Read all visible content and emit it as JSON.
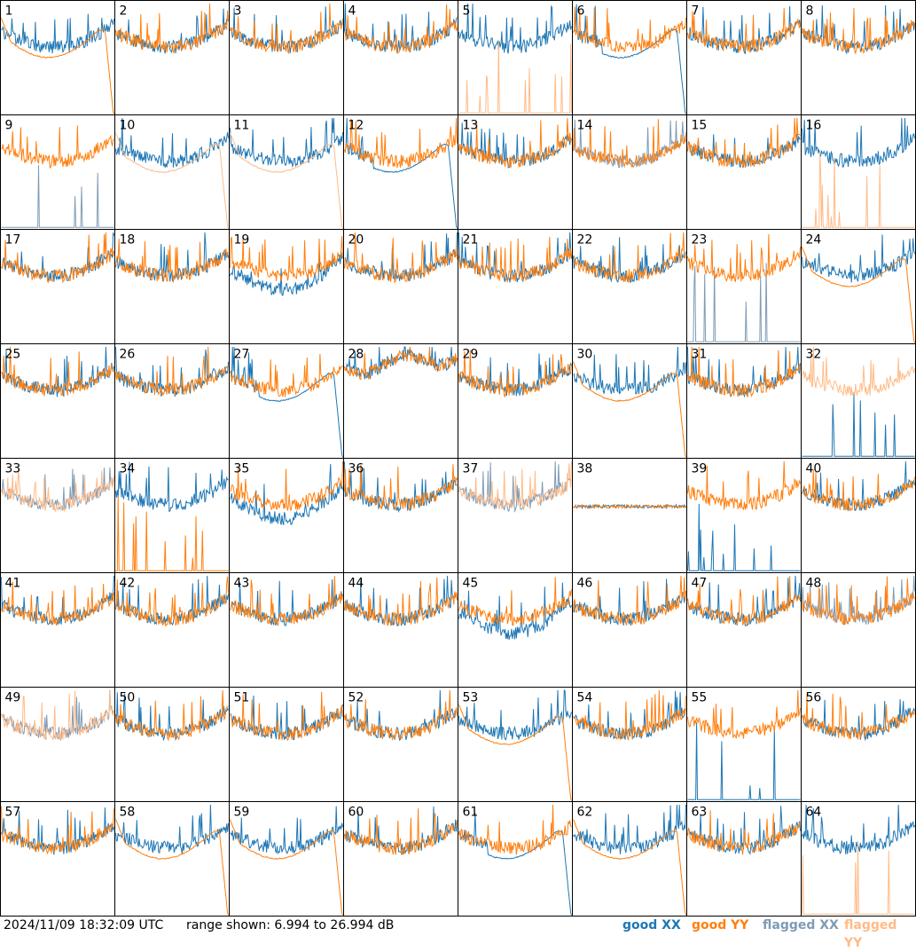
{
  "footer": {
    "timestamp": "2024/11/09 18:32:09 UTC",
    "range_text": "range shown: 6.994 to 26.994 dB"
  },
  "legend": {
    "good_xx": "good XX",
    "good_yy": "good YY",
    "flagged_xx": "flagged XX",
    "flagged_yy": "flagged YY"
  },
  "colors": {
    "good_xx": "#1f77b4",
    "good_yy": "#ff7f0e",
    "flagged_xx": "#7f9bb5",
    "flagged_yy": "#ffbb88"
  },
  "chart_data": {
    "type": "line",
    "ylim": [
      6.994,
      26.994
    ],
    "grid": {
      "rows": 8,
      "cols": 8
    },
    "panels": [
      {
        "label": "1",
        "xx": "good",
        "yy": "good",
        "pattern": "dropYY"
      },
      {
        "label": "2",
        "xx": "good",
        "yy": "good",
        "pattern": "normal"
      },
      {
        "label": "3",
        "xx": "good",
        "yy": "good",
        "pattern": "normal"
      },
      {
        "label": "4",
        "xx": "good",
        "yy": "good",
        "pattern": "normal"
      },
      {
        "label": "5",
        "xx": "good",
        "yy": "flagged",
        "pattern": "flatYY"
      },
      {
        "label": "6",
        "xx": "good",
        "yy": "good",
        "pattern": "smoothXX"
      },
      {
        "label": "7",
        "xx": "good",
        "yy": "good",
        "pattern": "normal"
      },
      {
        "label": "8",
        "xx": "good",
        "yy": "good",
        "pattern": "normal"
      },
      {
        "label": "9",
        "xx": "flagged",
        "yy": "good",
        "pattern": "spikesXX"
      },
      {
        "label": "10",
        "xx": "good",
        "yy": "flagged",
        "pattern": "smoothYY"
      },
      {
        "label": "11",
        "xx": "good",
        "yy": "flagged",
        "pattern": "smoothYY"
      },
      {
        "label": "12",
        "xx": "good",
        "yy": "good",
        "pattern": "smoothXX"
      },
      {
        "label": "13",
        "xx": "good",
        "yy": "good",
        "pattern": "normal"
      },
      {
        "label": "14",
        "xx": "flagged",
        "yy": "good",
        "pattern": "normal"
      },
      {
        "label": "15",
        "xx": "good",
        "yy": "good",
        "pattern": "normal"
      },
      {
        "label": "16",
        "xx": "good",
        "yy": "flagged",
        "pattern": "flatYY"
      },
      {
        "label": "17",
        "xx": "good",
        "yy": "good",
        "pattern": "normal"
      },
      {
        "label": "18",
        "xx": "good",
        "yy": "good",
        "pattern": "normal"
      },
      {
        "label": "19",
        "xx": "good",
        "yy": "good",
        "pattern": "deep"
      },
      {
        "label": "20",
        "xx": "good",
        "yy": "good",
        "pattern": "normal"
      },
      {
        "label": "21",
        "xx": "good",
        "yy": "good",
        "pattern": "normal"
      },
      {
        "label": "22",
        "xx": "good",
        "yy": "good",
        "pattern": "normal"
      },
      {
        "label": "23",
        "xx": "flagged",
        "yy": "good",
        "pattern": "spikesXX"
      },
      {
        "label": "24",
        "xx": "good",
        "yy": "good",
        "pattern": "dropYY"
      },
      {
        "label": "25",
        "xx": "good",
        "yy": "good",
        "pattern": "normal"
      },
      {
        "label": "26",
        "xx": "good",
        "yy": "good",
        "pattern": "normal"
      },
      {
        "label": "27",
        "xx": "good",
        "yy": "good",
        "pattern": "smoothXX"
      },
      {
        "label": "28",
        "xx": "good",
        "yy": "good",
        "pattern": "high"
      },
      {
        "label": "29",
        "xx": "good",
        "yy": "good",
        "pattern": "normal"
      },
      {
        "label": "30",
        "xx": "good",
        "yy": "good",
        "pattern": "dropYY"
      },
      {
        "label": "31",
        "xx": "good",
        "yy": "good",
        "pattern": "normal"
      },
      {
        "label": "32",
        "xx": "good",
        "yy": "flagged",
        "pattern": "flaggedNoisy"
      },
      {
        "label": "33",
        "xx": "flagged",
        "yy": "flagged",
        "pattern": "normal"
      },
      {
        "label": "34",
        "xx": "good",
        "yy": "good",
        "pattern": "flatYY"
      },
      {
        "label": "35",
        "xx": "good",
        "yy": "good",
        "pattern": "deep"
      },
      {
        "label": "36",
        "xx": "good",
        "yy": "good",
        "pattern": "normal"
      },
      {
        "label": "37",
        "xx": "flagged",
        "yy": "flagged",
        "pattern": "normal"
      },
      {
        "label": "38",
        "xx": "good",
        "yy": "good",
        "pattern": "flat"
      },
      {
        "label": "39",
        "xx": "good",
        "yy": "good",
        "pattern": "flatXX"
      },
      {
        "label": "40",
        "xx": "good",
        "yy": "good",
        "pattern": "normal"
      },
      {
        "label": "41",
        "xx": "good",
        "yy": "good",
        "pattern": "normal"
      },
      {
        "label": "42",
        "xx": "good",
        "yy": "good",
        "pattern": "normal"
      },
      {
        "label": "43",
        "xx": "good",
        "yy": "good",
        "pattern": "normal"
      },
      {
        "label": "44",
        "xx": "good",
        "yy": "good",
        "pattern": "normal"
      },
      {
        "label": "45",
        "xx": "good",
        "yy": "good",
        "pattern": "deep"
      },
      {
        "label": "46",
        "xx": "good",
        "yy": "good",
        "pattern": "normal"
      },
      {
        "label": "47",
        "xx": "good",
        "yy": "good",
        "pattern": "normal"
      },
      {
        "label": "48",
        "xx": "flagged",
        "yy": "good",
        "pattern": "normal"
      },
      {
        "label": "49",
        "xx": "flagged",
        "yy": "flagged",
        "pattern": "normal"
      },
      {
        "label": "50",
        "xx": "good",
        "yy": "good",
        "pattern": "normal"
      },
      {
        "label": "51",
        "xx": "good",
        "yy": "good",
        "pattern": "normal"
      },
      {
        "label": "52",
        "xx": "good",
        "yy": "good",
        "pattern": "normal"
      },
      {
        "label": "53",
        "xx": "good",
        "yy": "good",
        "pattern": "dropYY"
      },
      {
        "label": "54",
        "xx": "good",
        "yy": "good",
        "pattern": "normal"
      },
      {
        "label": "55",
        "xx": "good",
        "yy": "good",
        "pattern": "flatXX"
      },
      {
        "label": "56",
        "xx": "good",
        "yy": "good",
        "pattern": "normal"
      },
      {
        "label": "57",
        "xx": "good",
        "yy": "good",
        "pattern": "normal"
      },
      {
        "label": "58",
        "xx": "good",
        "yy": "good",
        "pattern": "dropYY"
      },
      {
        "label": "59",
        "xx": "good",
        "yy": "good",
        "pattern": "dropYY"
      },
      {
        "label": "60",
        "xx": "good",
        "yy": "good",
        "pattern": "normal"
      },
      {
        "label": "61",
        "xx": "good",
        "yy": "good",
        "pattern": "smoothXX"
      },
      {
        "label": "62",
        "xx": "good",
        "yy": "good",
        "pattern": "dropYY"
      },
      {
        "label": "63",
        "xx": "good",
        "yy": "good",
        "pattern": "normal"
      },
      {
        "label": "64",
        "xx": "good",
        "yy": "flagged",
        "pattern": "flatYY"
      }
    ]
  }
}
